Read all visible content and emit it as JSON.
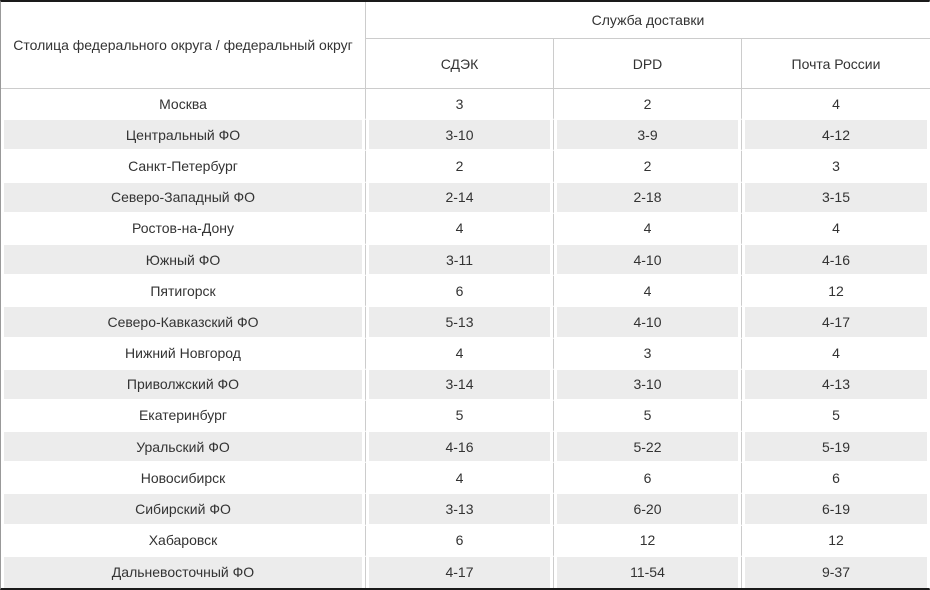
{
  "chart_data": {
    "type": "table",
    "group_header": "Служба доставки",
    "corner_header": "Столица федерального округа / федеральный округ",
    "columns": [
      "СДЭК",
      "DPD",
      "Почта России"
    ],
    "rows": [
      {
        "label": "Москва",
        "values": [
          "3",
          "2",
          "4"
        ]
      },
      {
        "label": "Центральный ФО",
        "values": [
          "3-10",
          "3-9",
          "4-12"
        ]
      },
      {
        "label": "Санкт-Петербург",
        "values": [
          "2",
          "2",
          "3"
        ]
      },
      {
        "label": "Северо-Западный ФО",
        "values": [
          "2-14",
          "2-18",
          "3-15"
        ]
      },
      {
        "label": "Ростов-на-Дону",
        "values": [
          "4",
          "4",
          "4"
        ]
      },
      {
        "label": "Южный ФО",
        "values": [
          "3-11",
          "4-10",
          "4-16"
        ]
      },
      {
        "label": "Пятигорск",
        "values": [
          "6",
          "4",
          "12"
        ]
      },
      {
        "label": "Северо-Кавказский ФО",
        "values": [
          "5-13",
          "4-10",
          "4-17"
        ]
      },
      {
        "label": "Нижний Новгород",
        "values": [
          "4",
          "3",
          "4"
        ]
      },
      {
        "label": "Приволжский ФО",
        "values": [
          "3-14",
          "3-10",
          "4-13"
        ]
      },
      {
        "label": "Екатеринбург",
        "values": [
          "5",
          "5",
          "5"
        ]
      },
      {
        "label": "Уральский ФО",
        "values": [
          "4-16",
          "5-22",
          "5-19"
        ]
      },
      {
        "label": "Новосибирск",
        "values": [
          "4",
          "6",
          "6"
        ]
      },
      {
        "label": "Сибирский ФО",
        "values": [
          "3-13",
          "6-20",
          "6-19"
        ]
      },
      {
        "label": "Хабаровск",
        "values": [
          "6",
          "12",
          "12"
        ]
      },
      {
        "label": "Дальневосточный ФО",
        "values": [
          "4-17",
          "11-54",
          "9-37"
        ]
      }
    ]
  },
  "colors": {
    "stripe": "#ececec",
    "grid_line": "#cccccc",
    "text": "#333333",
    "outer_dark_border": "#1a1a1a",
    "outer_side_border": "#999999"
  }
}
